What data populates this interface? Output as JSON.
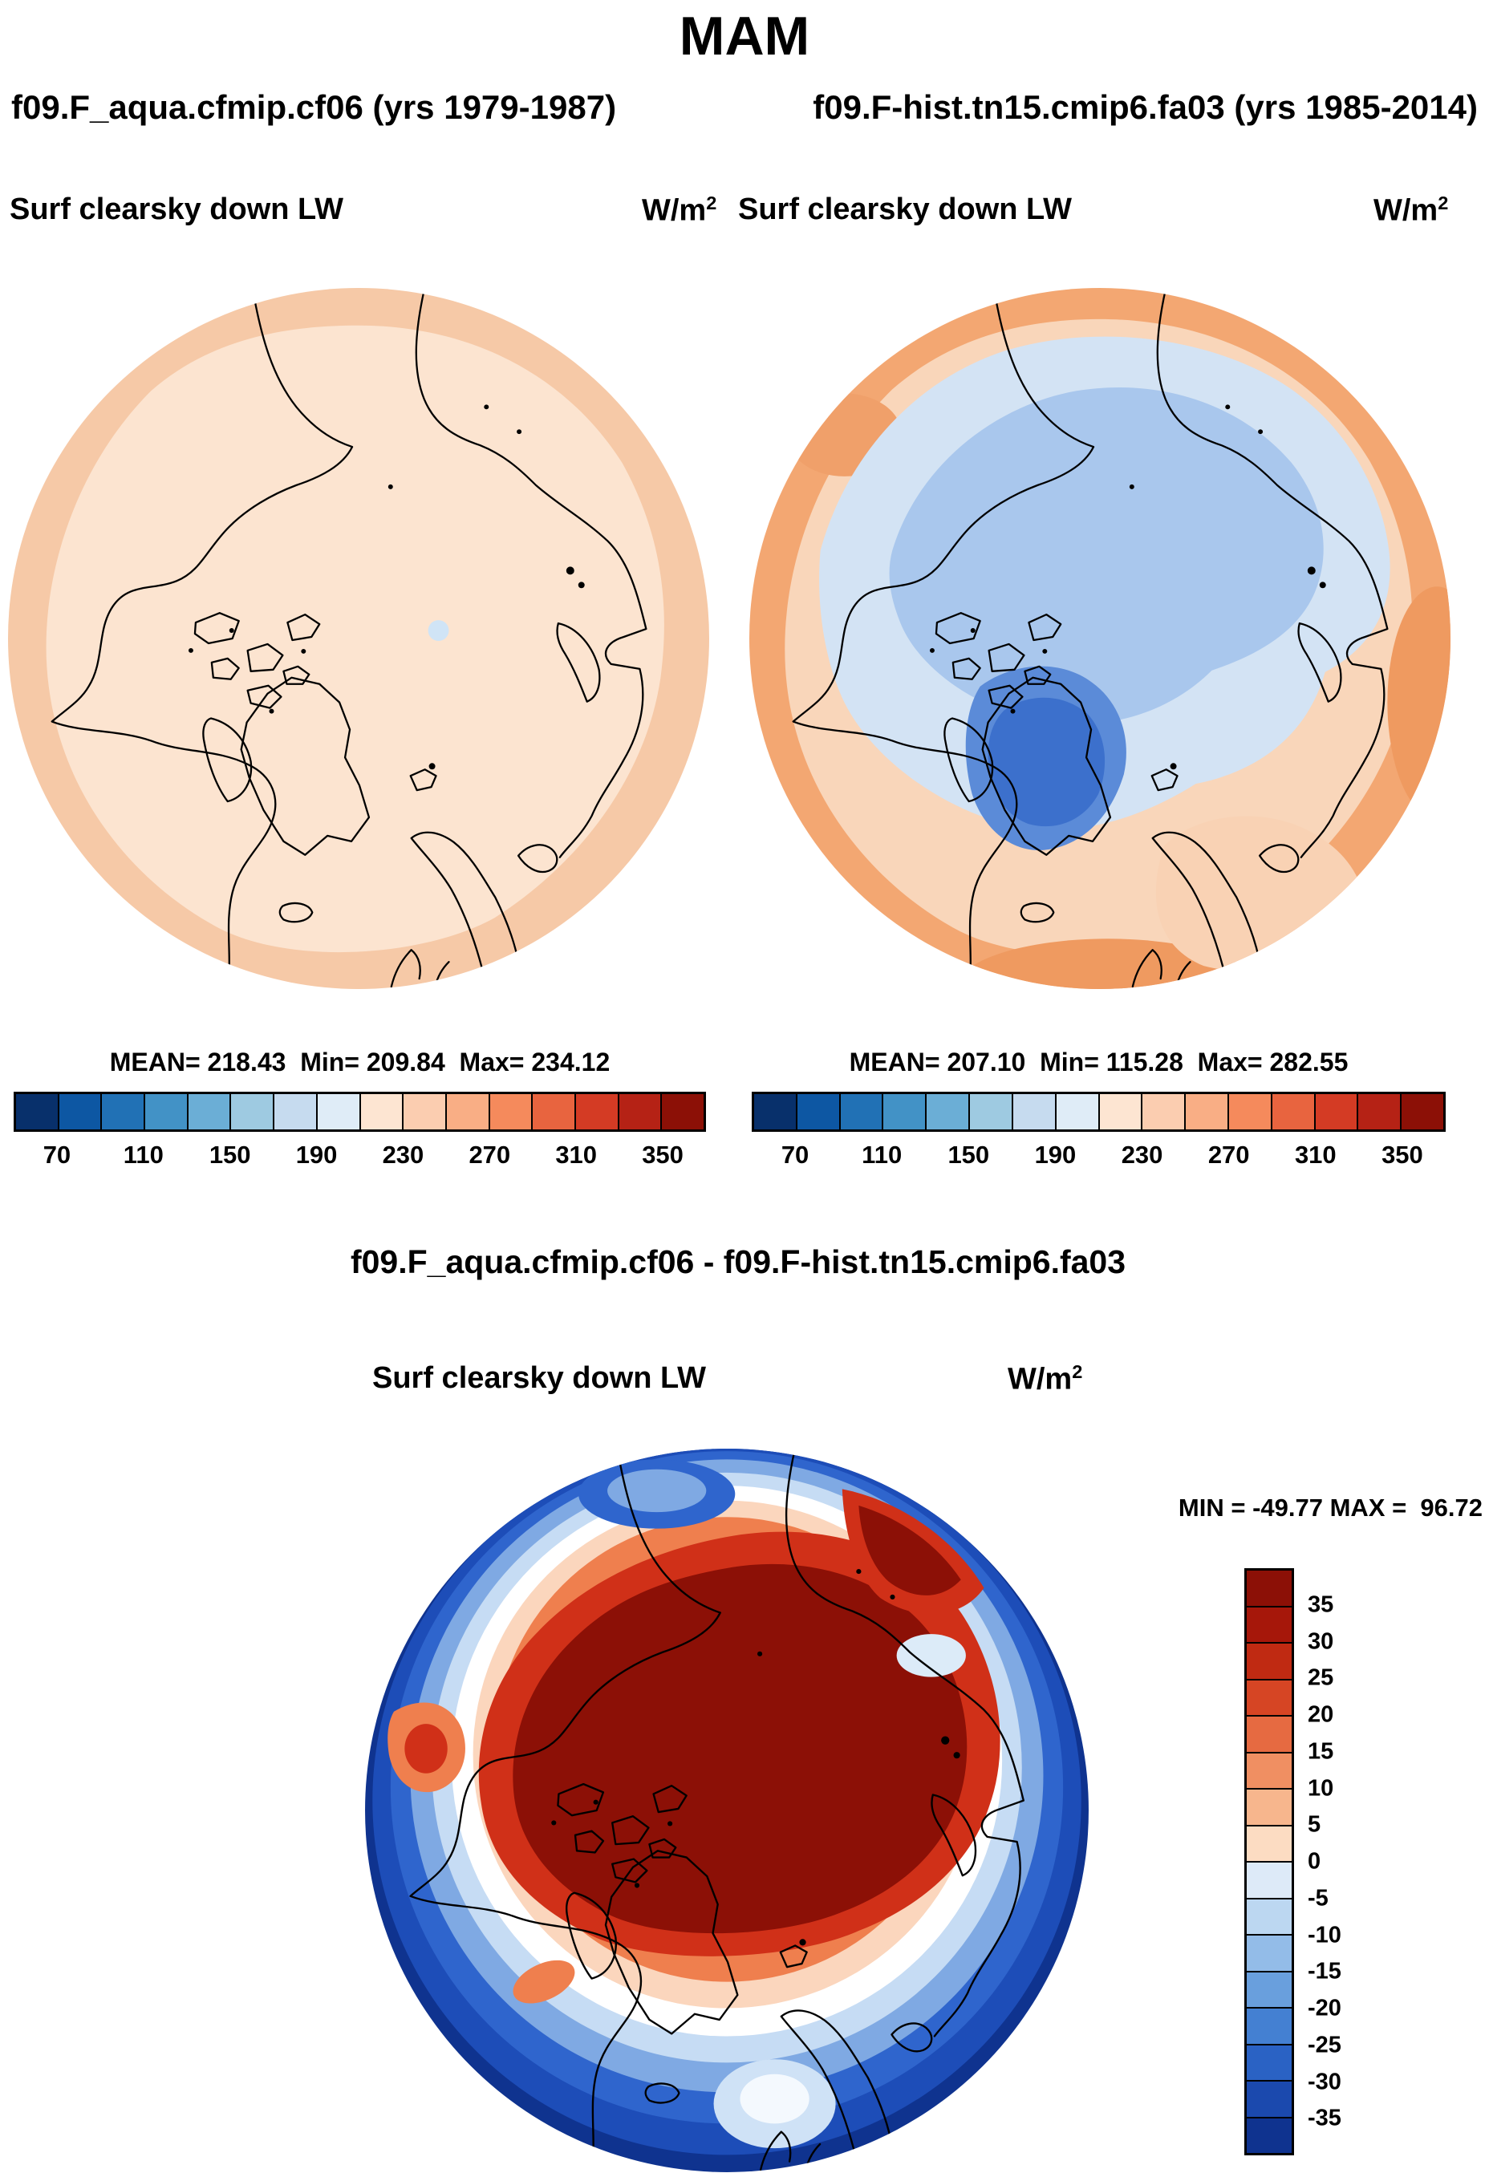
{
  "header": {
    "title": "MAM",
    "left_run": "f09.F_aqua.cfmip.cf06 (yrs 1979-1987)",
    "right_run": "f09.F-hist.tn15.cmip6.fa03 (yrs 1985-2014)"
  },
  "units": {
    "base": "W/m",
    "exp": "2"
  },
  "panel1": {
    "variable": "Surf clearsky down LW",
    "stats_text": "MEAN= 218.43  Min= 209.84  Max= 234.12"
  },
  "panel2": {
    "variable": "Surf clearsky down LW",
    "stats_text": "MEAN= 207.10  Min= 115.28  Max= 282.55"
  },
  "diff": {
    "title": "f09.F_aqua.cfmip.cf06 - f09.F-hist.tn15.cmip6.fa03",
    "variable": "Surf clearsky down LW",
    "minmax_text": "MIN = -49.77 MAX =  96.72"
  },
  "colorbar": {
    "tick_labels": [
      "70",
      "110",
      "150",
      "190",
      "230",
      "270",
      "310",
      "350"
    ],
    "colors": [
      "#08306b",
      "#0d57a3",
      "#2171b5",
      "#4292c6",
      "#6baed6",
      "#9ecae1",
      "#c6dbef",
      "#dfecf7",
      "#fde5d2",
      "#fbcdb0",
      "#f9ae85",
      "#f58a5c",
      "#e8643f",
      "#d43b24",
      "#b52215",
      "#8c1006"
    ]
  },
  "diff_colorbar": {
    "tick_labels": [
      "35",
      "30",
      "25",
      "20",
      "15",
      "10",
      "5",
      "0",
      "-5",
      "-10",
      "-15",
      "-20",
      "-25",
      "-30",
      "-35"
    ],
    "colors": [
      "#8c1006",
      "#a6170a",
      "#c02a12",
      "#d64524",
      "#e66a41",
      "#f08f62",
      "#f7b68d",
      "#fcdcc2",
      "#ddeaf8",
      "#bcd7f1",
      "#93bce8",
      "#699fdd",
      "#4480d2",
      "#2a62c4",
      "#1b49ae",
      "#0f338f"
    ]
  },
  "chart_data": {
    "type": "heatmap",
    "season": "MAM",
    "projection": "north polar stereographic",
    "variable": "Surf clearsky down LW",
    "units": "W/m^2",
    "panels": [
      {
        "run": "f09.F_aqua.cfmip.cf06",
        "years": "1979-1987",
        "mean": 218.43,
        "min": 209.84,
        "max": 234.12,
        "colorbar_ticks": [
          70,
          110,
          150,
          190,
          230,
          270,
          310,
          350
        ],
        "colorbar_range": [
          50,
          370
        ],
        "description": "nearly uniform pale peach field ~210-230 W/m2 with slightly higher ring at map edge and one tiny low spot right of pole"
      },
      {
        "run": "f09.F-hist.tn15.cmip6.fa03",
        "years": "1985-2014",
        "mean": 207.1,
        "min": 115.28,
        "max": 282.55,
        "colorbar_ticks": [
          70,
          110,
          150,
          190,
          230,
          270,
          310,
          350
        ],
        "colorbar_range": [
          50,
          370
        ],
        "description": "low values (blues, 130-190) over central Arctic with minimum over Greenland, higher values (peach/orange, 230-280) around periphery"
      },
      {
        "run": "difference (f09.F_aqua.cfmip.cf06 - f09.F-hist.tn15.cmip6.fa03)",
        "min": -49.77,
        "max": 96.72,
        "colorbar_ticks": [
          35,
          30,
          25,
          20,
          15,
          10,
          5,
          0,
          -5,
          -10,
          -15,
          -20,
          -25,
          -30,
          -35
        ],
        "description": "strong positive differences (>35, dark red) over central Arctic and Greenland, strong negative differences (<-35, dark blue) around the periphery, especially North Atlantic and map edge"
      }
    ]
  }
}
